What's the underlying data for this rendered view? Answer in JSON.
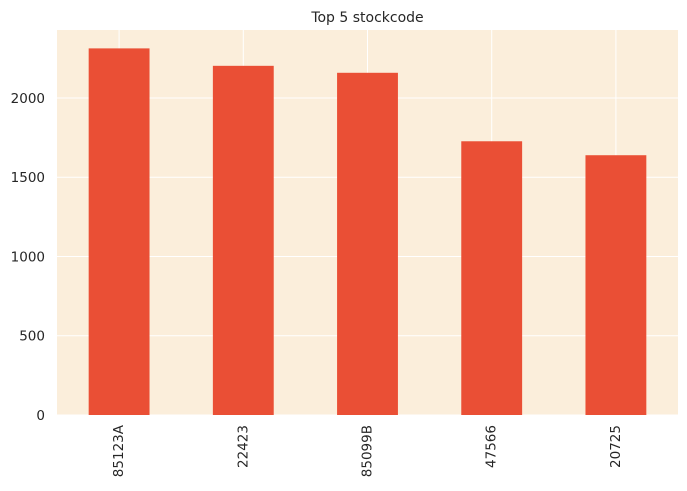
{
  "chart_data": {
    "type": "bar",
    "title": "Top 5 stockcode",
    "xlabel": "",
    "ylabel": "",
    "categories": [
      "85123A",
      "22423",
      "85099B",
      "47566",
      "20725"
    ],
    "values": [
      2313,
      2203,
      2159,
      1727,
      1639
    ],
    "ylim": [
      0,
      2429
    ],
    "yticks": [
      0,
      500,
      1000,
      1500,
      2000
    ],
    "grid": true,
    "legend": "none",
    "colors": {
      "bar": "#EA4F35",
      "plot_background": "#FBEEDB",
      "grid": "#FFFFFF",
      "text": "#262626"
    }
  }
}
